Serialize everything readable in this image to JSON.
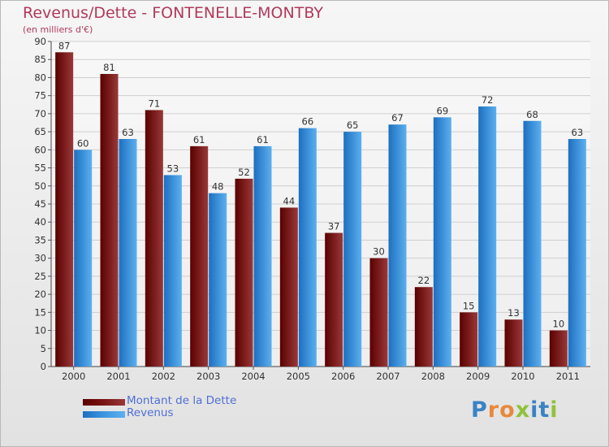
{
  "chart_data": {
    "type": "bar",
    "title": "Revenus/Dette - FONTENELLE-MONTBY",
    "subtitle": "(en milliers d'€)",
    "categories": [
      "2000",
      "2001",
      "2002",
      "2003",
      "2004",
      "2005",
      "2006",
      "2007",
      "2008",
      "2009",
      "2010",
      "2011"
    ],
    "series": [
      {
        "name": "Montant de la Dette",
        "color": "#7a1515",
        "values": [
          87,
          81,
          71,
          61,
          52,
          44,
          37,
          30,
          22,
          15,
          13,
          10
        ]
      },
      {
        "name": "Revenus",
        "color": "#3d96e0",
        "values": [
          60,
          63,
          53,
          48,
          61,
          66,
          65,
          67,
          69,
          72,
          68,
          63
        ]
      }
    ],
    "ylim": [
      0,
      90
    ],
    "yticks": [
      0,
      5,
      10,
      15,
      20,
      25,
      30,
      35,
      40,
      45,
      50,
      55,
      60,
      65,
      70,
      75,
      80,
      85,
      90
    ],
    "grid": true,
    "legend": "bottom-left",
    "xlabel": "",
    "ylabel": ""
  },
  "logo": {
    "text": "Proxiti",
    "colors": [
      "#3a83c4",
      "#e8893a",
      "#e8893a",
      "#8fc23a",
      "#3a83c4",
      "#3a83c4",
      "#8fc23a"
    ]
  }
}
